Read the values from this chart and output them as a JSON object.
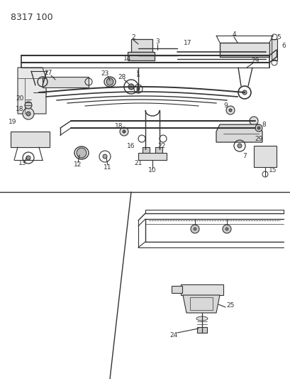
{
  "title": "8317 100",
  "bg_color": "#ffffff",
  "line_color": "#333333",
  "fig_width": 4.1,
  "fig_height": 5.33,
  "dpi": 100
}
